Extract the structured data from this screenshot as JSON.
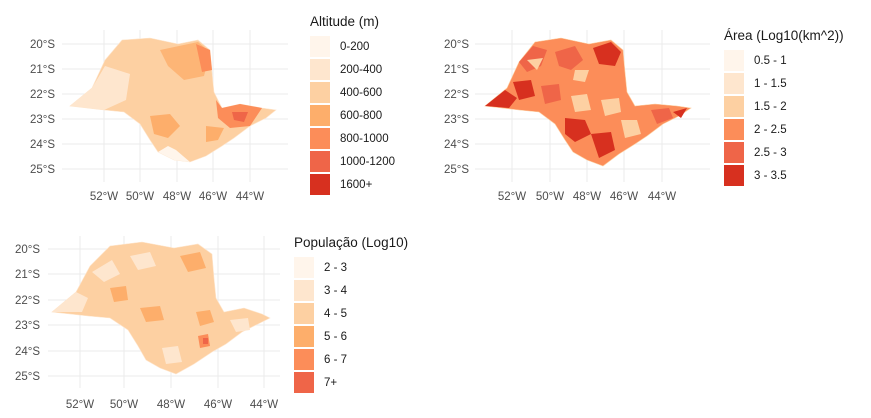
{
  "axes": {
    "y_ticks": [
      "20°S",
      "21°S",
      "22°S",
      "23°S",
      "24°S",
      "25°S"
    ],
    "x_ticks": [
      "52°W",
      "50°W",
      "48°W",
      "46°W",
      "44°W"
    ]
  },
  "maps": [
    {
      "id": "altitude",
      "legend_title": "Altitude (m)",
      "classes": [
        {
          "label": "0-200",
          "color": "#fff5eb"
        },
        {
          "label": "200-400",
          "color": "#fee6ce"
        },
        {
          "label": "400-600",
          "color": "#fdd0a2"
        },
        {
          "label": "600-800",
          "color": "#fdae6b"
        },
        {
          "label": "800-1000",
          "color": "#fc8d59"
        },
        {
          "label": "1000-1200",
          "color": "#ef6548"
        },
        {
          "label": "1600+",
          "color": "#d7301f"
        }
      ]
    },
    {
      "id": "area",
      "legend_title": "Área (Log10(km^2))",
      "classes": [
        {
          "label": "0.5 - 1",
          "color": "#fff5eb"
        },
        {
          "label": "1 - 1.5",
          "color": "#fee6ce"
        },
        {
          "label": "1.5 - 2",
          "color": "#fdd0a2"
        },
        {
          "label": "2 - 2.5",
          "color": "#fc8d59"
        },
        {
          "label": "2.5 - 3",
          "color": "#ef6548"
        },
        {
          "label": "3 - 3.5",
          "color": "#d7301f"
        }
      ]
    },
    {
      "id": "population",
      "legend_title": "População (Log10)",
      "classes": [
        {
          "label": "2 - 3",
          "color": "#fff5eb"
        },
        {
          "label": "3 - 4",
          "color": "#fee6ce"
        },
        {
          "label": "4 - 5",
          "color": "#fdd0a2"
        },
        {
          "label": "5 - 6",
          "color": "#fdae6b"
        },
        {
          "label": "6 - 7",
          "color": "#fc8d59"
        },
        {
          "label": "7+",
          "color": "#ef6548"
        }
      ]
    }
  ]
}
